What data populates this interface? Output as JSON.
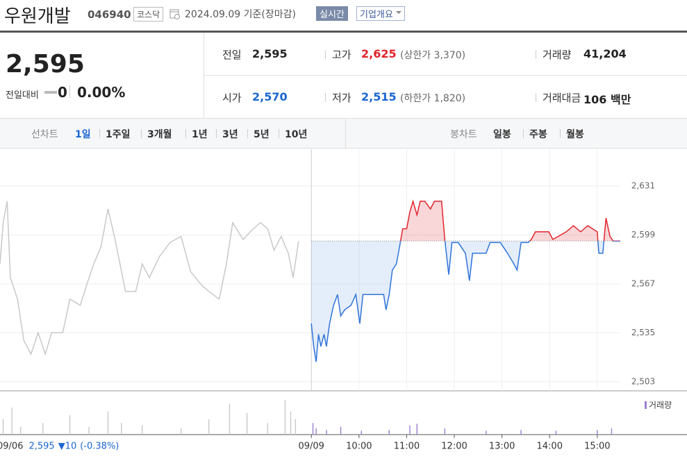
{
  "header": {
    "name": "우원개발",
    "code": "046940",
    "market": "코스닥",
    "date": "2024.09.09 기준(장마감)",
    "realtime": "실시간",
    "overview": "기업개요"
  },
  "quote": {
    "price": "2,595",
    "change_label": "전일대비",
    "change": "0",
    "change_pct": "0.00%"
  },
  "stats": {
    "rows": [
      [
        {
          "label": "전일",
          "value": "2,595"
        },
        {
          "label": "고가",
          "value": "2,625",
          "note": "(상한가 3,370)"
        },
        {
          "label": "거래량",
          "value": "41,204"
        }
      ],
      [
        {
          "label": "시가",
          "value": "2,570"
        },
        {
          "label": "저가",
          "value": "2,515",
          "note": "(하한가 1,820)"
        },
        {
          "label": "거래대금",
          "value": "106 백만"
        }
      ]
    ]
  },
  "tabs": {
    "line_label": "선차트",
    "periods": [
      "1일",
      "1주일",
      "3개월",
      "1년",
      "3년",
      "5년",
      "10년"
    ],
    "candle_label": "봉차트",
    "candles": [
      "일봉",
      "주봉",
      "월봉"
    ]
  },
  "chart_data": {
    "type": "line",
    "prev_day": {
      "date": "09/06",
      "close": "2,595",
      "change": "▼10",
      "change_pct": "(-0.38%)"
    },
    "baseline": 2595,
    "xlim": [
      -392,
      389
    ],
    "xticks": [
      {
        "value": 0,
        "label": "09/09"
      },
      {
        "value": 60,
        "label": "10:00"
      },
      {
        "value": 120,
        "label": "11:00"
      },
      {
        "value": 180,
        "label": "12:00"
      },
      {
        "value": 240,
        "label": "13:00"
      },
      {
        "value": 300,
        "label": "14:00"
      },
      {
        "value": 360,
        "label": "15:00"
      }
    ],
    "ylim": [
      2497,
      2655
    ],
    "yticks": [
      {
        "value": 2503,
        "label": "2,503"
      },
      {
        "value": 2535,
        "label": "2,535"
      },
      {
        "value": 2567,
        "label": "2,567"
      },
      {
        "value": 2599,
        "label": "2,599"
      },
      {
        "value": 2631,
        "label": "2,631"
      }
    ],
    "grid": true,
    "series": [
      {
        "color": "#c8c8c8",
        "x": [
          -392,
          -388,
          -383,
          -379,
          -370,
          -362,
          -353,
          -344,
          -335,
          -327,
          -313,
          -304,
          -291,
          -283,
          -274,
          -265,
          -256,
          -248,
          -234,
          -221,
          -213,
          -204,
          -191,
          -178,
          -164,
          -152,
          -138,
          -129,
          -116,
          -107,
          -99,
          -86,
          -73,
          -64,
          -55,
          -47,
          -38,
          -29,
          -23,
          -16
        ],
        "values": [
          2580,
          2607,
          2621,
          2571,
          2557,
          2530,
          2521,
          2535,
          2521,
          2535,
          2535,
          2557,
          2553,
          2566,
          2580,
          2591,
          2616,
          2598,
          2562,
          2562,
          2580,
          2571,
          2585,
          2594,
          2598,
          2575,
          2566,
          2562,
          2557,
          2580,
          2607,
          2596,
          2603,
          2607,
          2603,
          2589,
          2598,
          2587,
          2571,
          2595
        ]
      },
      {
        "color": "#2f73d9",
        "up_color": "#e0242b",
        "x": [
          0,
          3,
          6,
          9,
          12,
          16,
          19,
          23,
          28,
          33,
          37,
          42,
          50,
          56,
          61,
          65,
          72,
          80,
          91,
          94,
          98,
          102,
          107,
          111,
          115,
          120,
          124,
          128,
          133,
          137,
          143,
          150,
          155,
          164,
          168,
          173,
          177,
          185,
          194,
          199,
          203,
          220,
          225,
          238,
          247,
          255,
          259,
          264,
          273,
          277,
          282,
          299,
          304,
          321,
          330,
          339,
          348,
          360,
          362,
          367,
          371,
          376,
          380,
          389
        ],
        "values": [
          2541,
          2526,
          2516,
          2534,
          2526,
          2534,
          2526,
          2541,
          2553,
          2560,
          2546,
          2550,
          2553,
          2560,
          2541,
          2560,
          2560,
          2560,
          2560,
          2550,
          2560,
          2576,
          2580,
          2591,
          2603,
          2603,
          2614,
          2621,
          2612,
          2621,
          2621,
          2616,
          2621,
          2621,
          2596,
          2573,
          2594,
          2594,
          2587,
          2569,
          2587,
          2587,
          2594,
          2594,
          2587,
          2580,
          2576,
          2594,
          2594,
          2596,
          2601,
          2601,
          2596,
          2601,
          2605,
          2601,
          2605,
          2601,
          2587,
          2587,
          2610,
          2598,
          2595,
          2595
        ]
      }
    ],
    "volume": {
      "name": "거래량",
      "prev_color": "#c8c8c8",
      "color": "#9b7fd0",
      "prev_x": [
        -388,
        -377,
        -366,
        -338,
        -304,
        -280,
        -256,
        -239,
        -213,
        -164,
        -129,
        -103,
        -81,
        -55,
        -33,
        -26,
        -20
      ],
      "prev_values": [
        1000,
        1750,
        500,
        750,
        1250,
        500,
        1500,
        750,
        600,
        400,
        1000,
        2000,
        1400,
        750,
        2250,
        1500,
        1000
      ],
      "x": [
        2,
        6,
        19,
        37,
        63,
        98,
        124,
        133,
        168,
        220,
        264,
        308,
        360,
        378
      ],
      "values": [
        750,
        400,
        300,
        500,
        250,
        300,
        600,
        700,
        400,
        250,
        300,
        250,
        300,
        400
      ]
    }
  }
}
